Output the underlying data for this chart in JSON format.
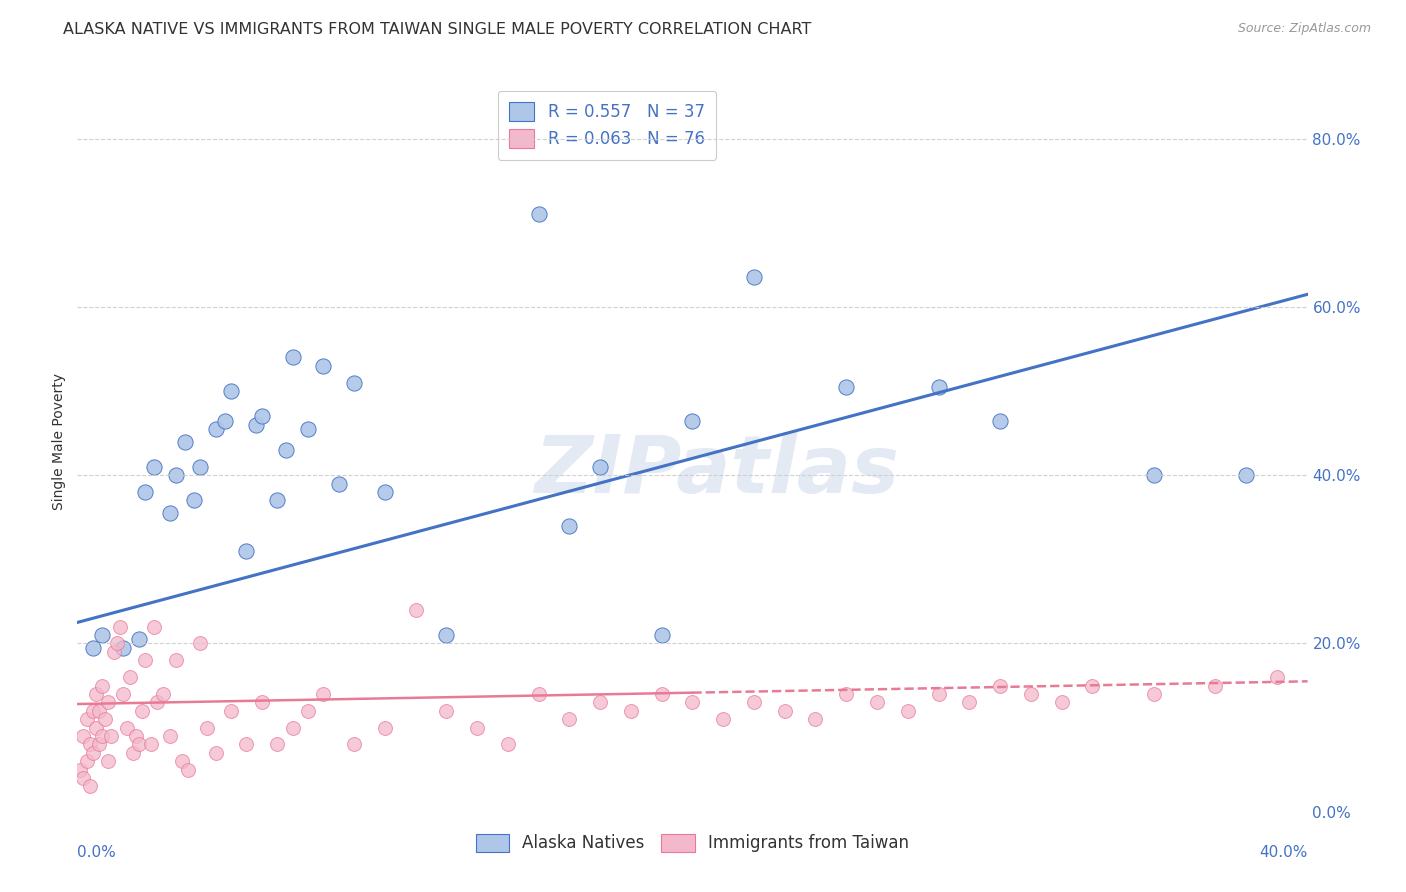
{
  "title": "ALASKA NATIVE VS IMMIGRANTS FROM TAIWAN SINGLE MALE POVERTY CORRELATION CHART",
  "source": "Source: ZipAtlas.com",
  "ylabel": "Single Male Poverty",
  "ytick_labels": [
    "0.0%",
    "20.0%",
    "40.0%",
    "60.0%",
    "80.0%"
  ],
  "ytick_values": [
    0.0,
    0.2,
    0.4,
    0.6,
    0.8
  ],
  "xlim": [
    0.0,
    0.4
  ],
  "ylim": [
    0.0,
    0.88
  ],
  "blue_R": 0.557,
  "blue_N": 37,
  "pink_R": 0.063,
  "pink_N": 76,
  "blue_color": "#aec6e8",
  "pink_color": "#f4b8cc",
  "blue_line_color": "#4472c4",
  "pink_line_color": "#e87a96",
  "legend_label_blue": "Alaska Natives",
  "legend_label_pink": "Immigrants from Taiwan",
  "watermark": "ZIPatlas",
  "blue_scatter_x": [
    0.005,
    0.008,
    0.015,
    0.02,
    0.022,
    0.025,
    0.03,
    0.032,
    0.035,
    0.038,
    0.04,
    0.045,
    0.048,
    0.05,
    0.055,
    0.058,
    0.06,
    0.065,
    0.068,
    0.07,
    0.075,
    0.08,
    0.085,
    0.09,
    0.1,
    0.12,
    0.15,
    0.16,
    0.17,
    0.19,
    0.2,
    0.22,
    0.25,
    0.28,
    0.3,
    0.35,
    0.38
  ],
  "blue_scatter_y": [
    0.195,
    0.21,
    0.195,
    0.205,
    0.38,
    0.41,
    0.355,
    0.4,
    0.44,
    0.37,
    0.41,
    0.455,
    0.465,
    0.5,
    0.31,
    0.46,
    0.47,
    0.37,
    0.43,
    0.54,
    0.455,
    0.53,
    0.39,
    0.51,
    0.38,
    0.21,
    0.71,
    0.34,
    0.41,
    0.21,
    0.465,
    0.635,
    0.505,
    0.505,
    0.465,
    0.4,
    0.4
  ],
  "pink_scatter_x": [
    0.001,
    0.002,
    0.002,
    0.003,
    0.003,
    0.004,
    0.004,
    0.005,
    0.005,
    0.006,
    0.006,
    0.007,
    0.007,
    0.008,
    0.008,
    0.009,
    0.01,
    0.01,
    0.011,
    0.012,
    0.013,
    0.014,
    0.015,
    0.016,
    0.017,
    0.018,
    0.019,
    0.02,
    0.021,
    0.022,
    0.024,
    0.025,
    0.026,
    0.028,
    0.03,
    0.032,
    0.034,
    0.036,
    0.04,
    0.042,
    0.045,
    0.05,
    0.055,
    0.06,
    0.065,
    0.07,
    0.075,
    0.08,
    0.09,
    0.1,
    0.11,
    0.12,
    0.13,
    0.14,
    0.15,
    0.16,
    0.17,
    0.18,
    0.19,
    0.2,
    0.21,
    0.22,
    0.23,
    0.24,
    0.25,
    0.26,
    0.27,
    0.28,
    0.29,
    0.3,
    0.31,
    0.32,
    0.33,
    0.35,
    0.37,
    0.39
  ],
  "pink_scatter_y": [
    0.05,
    0.04,
    0.09,
    0.06,
    0.11,
    0.03,
    0.08,
    0.07,
    0.12,
    0.1,
    0.14,
    0.08,
    0.12,
    0.09,
    0.15,
    0.11,
    0.06,
    0.13,
    0.09,
    0.19,
    0.2,
    0.22,
    0.14,
    0.1,
    0.16,
    0.07,
    0.09,
    0.08,
    0.12,
    0.18,
    0.08,
    0.22,
    0.13,
    0.14,
    0.09,
    0.18,
    0.06,
    0.05,
    0.2,
    0.1,
    0.07,
    0.12,
    0.08,
    0.13,
    0.08,
    0.1,
    0.12,
    0.14,
    0.08,
    0.1,
    0.24,
    0.12,
    0.1,
    0.08,
    0.14,
    0.11,
    0.13,
    0.12,
    0.14,
    0.13,
    0.11,
    0.13,
    0.12,
    0.11,
    0.14,
    0.13,
    0.12,
    0.14,
    0.13,
    0.15,
    0.14,
    0.13,
    0.15,
    0.14,
    0.15,
    0.16
  ],
  "title_fontsize": 11.5,
  "axis_label_fontsize": 10,
  "tick_fontsize": 11,
  "legend_fontsize": 12,
  "background_color": "#ffffff",
  "grid_color": "#cccccc",
  "blue_line_y0": 0.225,
  "blue_line_y1": 0.615,
  "pink_line_y0": 0.128,
  "pink_line_y1": 0.155
}
